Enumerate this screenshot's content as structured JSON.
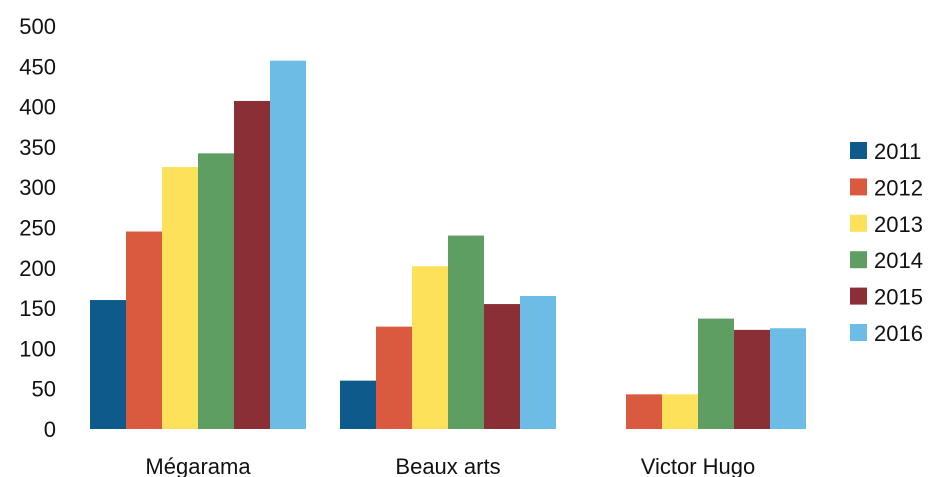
{
  "chart_data": {
    "type": "bar",
    "title": "",
    "xlabel": "",
    "ylabel": "",
    "ylim": [
      0,
      500
    ],
    "yticks": [
      0,
      50,
      100,
      150,
      200,
      250,
      300,
      350,
      400,
      450,
      500
    ],
    "categories": [
      "Mégarama",
      "Beaux arts",
      "Victor Hugo"
    ],
    "series": [
      {
        "name": "2011",
        "color": "#0e5a8a",
        "values": [
          160,
          60,
          null
        ]
      },
      {
        "name": "2012",
        "color": "#d95a3e",
        "values": [
          245,
          127,
          43
        ]
      },
      {
        "name": "2013",
        "color": "#fde15a",
        "values": [
          325,
          202,
          43
        ]
      },
      {
        "name": "2014",
        "color": "#5e9e62",
        "values": [
          342,
          240,
          137
        ]
      },
      {
        "name": "2015",
        "color": "#8a2f35",
        "values": [
          407,
          155,
          123
        ]
      },
      {
        "name": "2016",
        "color": "#6cbce6",
        "values": [
          457,
          165,
          125
        ]
      }
    ],
    "legend": "right",
    "grid": false
  }
}
